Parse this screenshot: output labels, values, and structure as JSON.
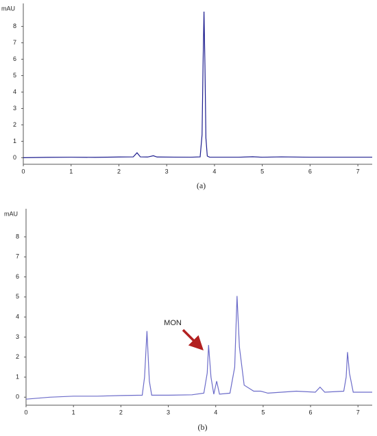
{
  "chart_data": [
    {
      "type": "line",
      "y_label": "mAU",
      "caption": "(a)",
      "color": "#1c1c8e",
      "xlim": [
        0,
        7.3
      ],
      "ylim": [
        -0.4,
        9.4
      ],
      "xticks": [
        0,
        1,
        2,
        3,
        4,
        5,
        6,
        7
      ],
      "yticks": [
        0,
        1,
        2,
        3,
        4,
        5,
        6,
        7,
        8
      ],
      "x": [
        0,
        0.5,
        1.0,
        1.5,
        2.0,
        2.3,
        2.38,
        2.45,
        2.6,
        2.72,
        2.8,
        3.5,
        3.7,
        3.74,
        3.76,
        3.78,
        3.8,
        3.82,
        3.85,
        3.9,
        4.5,
        4.8,
        5.0,
        5.4,
        6,
        7.3
      ],
      "values": [
        0,
        0.02,
        0.03,
        0.02,
        0.04,
        0.05,
        0.3,
        0.05,
        0.04,
        0.12,
        0.04,
        0.03,
        0.05,
        1.4,
        5.6,
        8.9,
        5.6,
        1.2,
        0.1,
        0.03,
        0.03,
        0.06,
        0.03,
        0.05,
        0.03,
        0.03
      ]
    },
    {
      "type": "line",
      "y_label": "mAU",
      "caption": "(b)",
      "color": "#6b6bc9",
      "annotation": "MON",
      "xlim": [
        0,
        7.3
      ],
      "ylim": [
        -0.4,
        9.4
      ],
      "xticks": [
        0,
        1,
        2,
        3,
        4,
        5,
        6,
        7
      ],
      "yticks": [
        0,
        1,
        2,
        3,
        4,
        5,
        6,
        7,
        8
      ],
      "x": [
        0,
        0.5,
        1,
        1.5,
        2,
        2.45,
        2.5,
        2.55,
        2.6,
        2.65,
        3,
        3.5,
        3.75,
        3.82,
        3.85,
        3.9,
        3.96,
        4.02,
        4.08,
        4.3,
        4.4,
        4.45,
        4.5,
        4.6,
        4.8,
        4.88,
        4.95,
        5.1,
        5.7,
        6.1,
        6.2,
        6.3,
        6.7,
        6.75,
        6.78,
        6.82,
        6.9,
        7.3
      ],
      "values": [
        -0.1,
        0.0,
        0.05,
        0.05,
        0.08,
        0.1,
        1.0,
        3.3,
        0.8,
        0.1,
        0.1,
        0.12,
        0.2,
        1.2,
        2.6,
        1.0,
        0.15,
        0.8,
        0.15,
        0.2,
        1.5,
        5.05,
        2.5,
        0.6,
        0.3,
        0.3,
        0.3,
        0.2,
        0.3,
        0.25,
        0.5,
        0.25,
        0.3,
        1.0,
        2.25,
        1.2,
        0.25,
        0.25
      ]
    }
  ]
}
